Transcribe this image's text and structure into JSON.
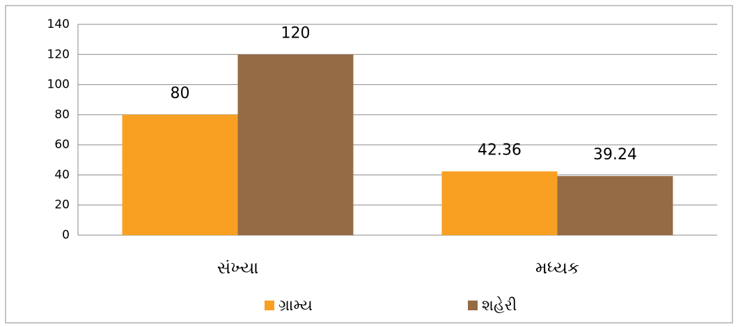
{
  "chart_data": {
    "type": "bar",
    "categories": [
      "સંખ્યા",
      "મધ્યક"
    ],
    "series": [
      {
        "name": "ગ્રામ્ય",
        "color": "#f9a023",
        "values": [
          80,
          42.36
        ]
      },
      {
        "name": "શહેરી",
        "color": "#956b45",
        "values": [
          120,
          39.24
        ]
      }
    ],
    "ylim": [
      0,
      140
    ],
    "yticks": [
      0,
      20,
      40,
      60,
      80,
      100,
      120,
      140
    ],
    "grid": true,
    "legend": "bottom"
  }
}
